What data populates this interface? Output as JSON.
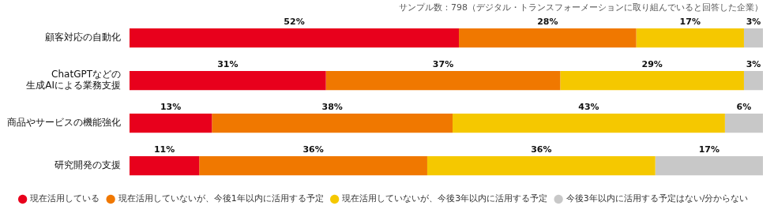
{
  "chart_data": {
    "type": "bar",
    "orientation": "horizontal",
    "stacked": true,
    "annotations": [
      "サンプル数：798（デジタル・トランスフォーメーションに取り組んでいると回答した企業）"
    ],
    "categories": [
      "顧客対応の自動化",
      "ChatGPTなどの\n生成AIによる業務支援",
      "商品やサービスの機能強化",
      "研究開発の支援"
    ],
    "series": [
      {
        "name": "現在活用している",
        "color": "#e8001c",
        "values": [
          52,
          31,
          13,
          11
        ],
        "value_labels": [
          "52%",
          "31%",
          "13%",
          "11%"
        ]
      },
      {
        "name": "現在活用していないが、今後1年以内に活用する予定",
        "color": "#f07800",
        "values": [
          28,
          37,
          38,
          36
        ],
        "value_labels": [
          "28%",
          "37%",
          "38%",
          "36%"
        ]
      },
      {
        "name": "現在活用していないが、今後3年以内に活用する予定",
        "color": "#f5c800",
        "values": [
          17,
          29,
          43,
          36
        ],
        "value_labels": [
          "17%",
          "29%",
          "43%",
          "36%"
        ]
      },
      {
        "name": "今後3年以内に活用する予定はない/分からない",
        "color": "#c8c8c8",
        "values": [
          3,
          3,
          6,
          17
        ],
        "value_labels": [
          "3%",
          "3%",
          "6%",
          "17%"
        ]
      }
    ],
    "xlim": [
      0,
      100
    ],
    "grid": false,
    "tick_labels": "y",
    "legend": "bottom",
    "data_labels": true
  }
}
